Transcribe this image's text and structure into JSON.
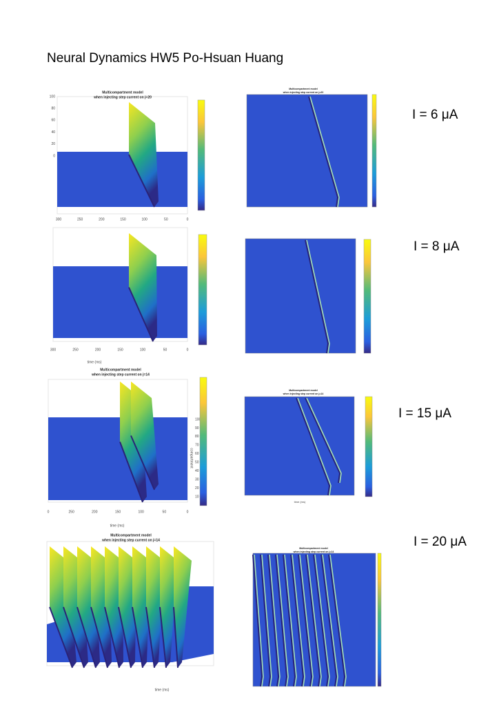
{
  "header": {
    "title": "Neural Dynamics HW5  Po-Hsuan Huang"
  },
  "rows": [
    {
      "label": "I = 6 μA",
      "left": {
        "title": "Multicompartment model",
        "subtitle": "when injecting step current on j=20",
        "yticks": [
          "100",
          "80",
          "60",
          "40",
          "20",
          "0"
        ],
        "xticks": [
          "300",
          "250",
          "200",
          "150",
          "100",
          "50",
          "0"
        ],
        "xlabel": "time (ms)"
      },
      "right": {
        "title": "Multicompartment model",
        "subtitle": "when injecting step current on j=20"
      }
    },
    {
      "label": "I = 8 μA",
      "left": {
        "xticks": [
          "300",
          "250",
          "200",
          "150",
          "100",
          "50",
          "0"
        ],
        "xlabel": "time (ms)"
      },
      "right": {}
    },
    {
      "label": "I = 15 μA",
      "left": {
        "title": "Multicompartment model",
        "subtitle": "when injecting step current on j=14",
        "xticks": [
          "0",
          "250",
          "200",
          "150",
          "100",
          "50",
          "0"
        ],
        "xlabel": "time (ms)",
        "zticks": [
          "100",
          "90",
          "80",
          "70",
          "60",
          "50",
          "40",
          "30",
          "20",
          "10"
        ],
        "zlabel": "compartment"
      },
      "right": {
        "title": "Multicompartment model",
        "subtitle": "when injecting step current on j=14",
        "xlabel": "time (ms)"
      }
    },
    {
      "label": "I = 20 μA",
      "left": {
        "title": "Multicompartment model",
        "subtitle": "when injecting step current on j=14",
        "xlabel": "time (ms)"
      },
      "right": {
        "title": "Multicompartment model",
        "subtitle": "when injecting step current on j=14"
      }
    }
  ]
}
